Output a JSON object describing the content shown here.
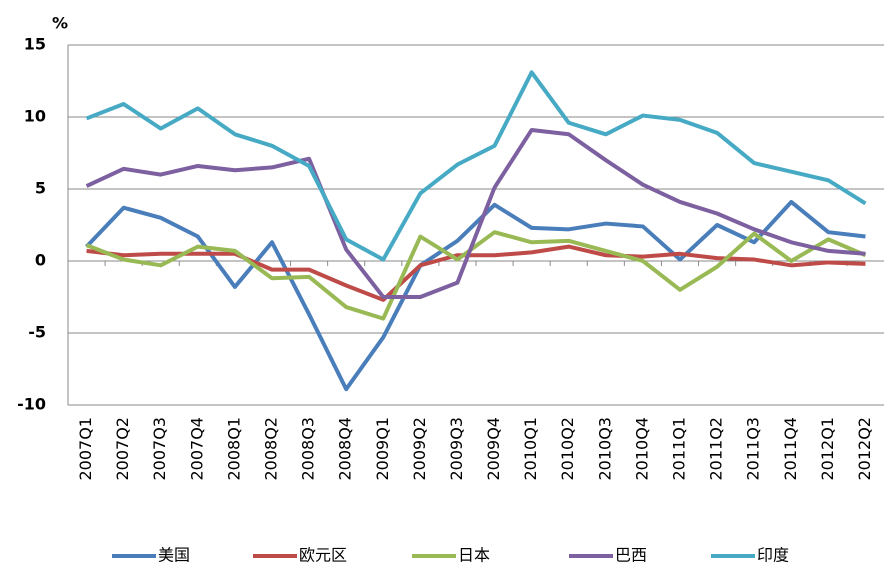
{
  "chart_data": {
    "type": "line",
    "y_label": "%",
    "categories": [
      "2007Q1",
      "2007Q2",
      "2007Q3",
      "2007Q4",
      "2008Q1",
      "2008Q2",
      "2008Q3",
      "2008Q4",
      "2009Q1",
      "2009Q2",
      "2009Q3",
      "2009Q4",
      "2010Q1",
      "2010Q2",
      "2010Q3",
      "2010Q4",
      "2011Q1",
      "2011Q2",
      "2011Q3",
      "2011Q4",
      "2012Q1",
      "2012Q2"
    ],
    "series": [
      {
        "name": "美国",
        "color": "#4a7ebb",
        "values": [
          1.0,
          3.7,
          3.0,
          1.7,
          -1.8,
          1.3,
          -3.7,
          -8.9,
          -5.3,
          -0.3,
          1.4,
          3.9,
          2.3,
          2.2,
          2.6,
          2.4,
          0.1,
          2.5,
          1.3,
          4.1,
          2.0,
          1.7
        ]
      },
      {
        "name": "欧元区",
        "color": "#be4b48",
        "values": [
          0.7,
          0.4,
          0.5,
          0.5,
          0.5,
          -0.6,
          -0.6,
          -1.7,
          -2.7,
          -0.3,
          0.4,
          0.4,
          0.6,
          1.0,
          0.4,
          0.3,
          0.5,
          0.2,
          0.1,
          -0.3,
          -0.1,
          -0.2
        ]
      },
      {
        "name": "日本",
        "color": "#98b954",
        "values": [
          1.1,
          0.1,
          -0.3,
          1.0,
          0.7,
          -1.2,
          -1.1,
          -3.2,
          -4.0,
          1.7,
          0.1,
          2.0,
          1.3,
          1.4,
          0.7,
          0.0,
          -2.0,
          -0.4,
          1.9,
          0.0,
          1.5,
          0.4
        ]
      },
      {
        "name": "巴西",
        "color": "#7d60a0",
        "values": [
          5.2,
          6.4,
          6.0,
          6.6,
          6.3,
          6.5,
          7.1,
          0.8,
          -2.5,
          -2.5,
          -1.5,
          5.1,
          9.1,
          8.8,
          7.0,
          5.3,
          4.1,
          3.3,
          2.2,
          1.3,
          0.7,
          0.5
        ]
      },
      {
        "name": "印度",
        "color": "#46aac5",
        "values": [
          9.9,
          10.9,
          9.2,
          10.6,
          8.8,
          8.0,
          6.6,
          1.5,
          0.1,
          4.7,
          6.7,
          8.0,
          13.1,
          9.6,
          8.8,
          10.1,
          9.8,
          8.9,
          6.8,
          6.2,
          5.6,
          4.0
        ]
      }
    ],
    "ylim": [
      -10,
      15
    ],
    "yticks": [
      -10,
      -5,
      0,
      5,
      10,
      15
    ],
    "grid": true
  }
}
